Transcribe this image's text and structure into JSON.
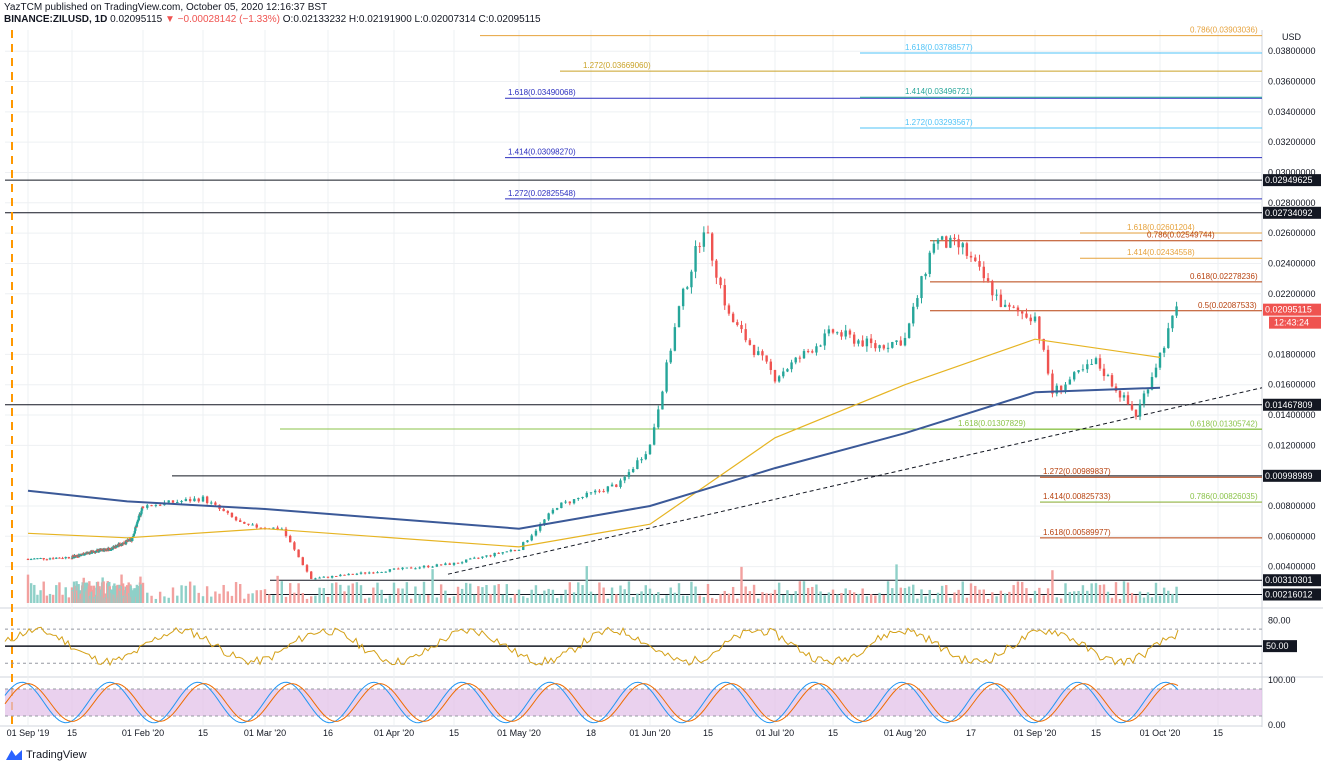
{
  "header": {
    "line1": "YazTCM published on TradingView.com, October 05, 2020 12:16:37 BST",
    "symbol": "BINANCE:ZILUSD, 1D",
    "last": "0.02095115",
    "change": "▼ −0.00028142 (−1.33%)",
    "ohlc": "O:0.02133232 H:0.02191900 L:0.02007314 C:0.02095115"
  },
  "brand": "TradingView",
  "currency": "USD",
  "colors": {
    "up": "#26a69a",
    "down": "#ef5350",
    "ma_fast": "#e6b422",
    "ma_slow": "#3b5998",
    "rsi": "#d4a017",
    "stoch_k": "#2196f3",
    "stoch_d": "#ef6c00",
    "stoch_band": "#e1bee7"
  },
  "chart_data": [
    {
      "type": "candlestick",
      "title": "BINANCE:ZILUSD, 1D",
      "ylim": [
        0.0016,
        0.0394
      ],
      "y_ticks": [
        "0.03800000",
        "0.03600000",
        "0.03400000",
        "0.03200000",
        "0.03000000",
        "0.02800000",
        "0.02600000",
        "0.02400000",
        "0.02200000",
        "0.01800000",
        "0.01600000",
        "0.01400000",
        "0.01200000",
        "0.00800000",
        "0.00600000",
        "0.00400000"
      ],
      "x_ticks": [
        "01 Sep '19",
        "15",
        "01 Feb '20",
        "15",
        "01 Mar '20",
        "16",
        "01 Apr '20",
        "15",
        "01 May '20",
        "18",
        "01 Jun '20",
        "15",
        "01 Jul '20",
        "15",
        "01 Aug '20",
        "17",
        "01 Sep '20",
        "15",
        "01 Oct '20",
        "15"
      ],
      "price_path": [
        [
          "2019-09-01",
          0.0045
        ],
        [
          "2019-10-15",
          0.0049
        ],
        [
          "2019-12-01",
          0.0052
        ],
        [
          "2020-01-10",
          0.0058
        ],
        [
          "2020-02-01",
          0.008
        ],
        [
          "2020-02-15",
          0.0085
        ],
        [
          "2020-02-25",
          0.0067
        ],
        [
          "2020-03-05",
          0.0065
        ],
        [
          "2020-03-12",
          0.0032
        ],
        [
          "2020-04-01",
          0.0038
        ],
        [
          "2020-04-15",
          0.0042
        ],
        [
          "2020-05-01",
          0.0052
        ],
        [
          "2020-05-10",
          0.008
        ],
        [
          "2020-05-25",
          0.0095
        ],
        [
          "2020-06-01",
          0.012
        ],
        [
          "2020-06-08",
          0.021
        ],
        [
          "2020-06-14",
          0.0265
        ],
        [
          "2020-06-20",
          0.0205
        ],
        [
          "2020-07-01",
          0.0165
        ],
        [
          "2020-07-15",
          0.0195
        ],
        [
          "2020-07-25",
          0.0185
        ],
        [
          "2020-08-01",
          0.019
        ],
        [
          "2020-08-08",
          0.0255
        ],
        [
          "2020-08-15",
          0.025
        ],
        [
          "2020-08-25",
          0.021
        ],
        [
          "2020-09-01",
          0.0205
        ],
        [
          "2020-09-05",
          0.0155
        ],
        [
          "2020-09-15",
          0.0175
        ],
        [
          "2020-09-25",
          0.014
        ],
        [
          "2020-10-01",
          0.018
        ],
        [
          "2020-10-05",
          0.02095
        ]
      ],
      "moving_average_fast": [
        [
          "2019-09-01",
          0.0062
        ],
        [
          "2020-01-01",
          0.0059
        ],
        [
          "2020-03-01",
          0.0065
        ],
        [
          "2020-05-01",
          0.0053
        ],
        [
          "2020-06-01",
          0.0068
        ],
        [
          "2020-07-01",
          0.0125
        ],
        [
          "2020-08-01",
          0.016
        ],
        [
          "2020-09-01",
          0.019
        ],
        [
          "2020-10-01",
          0.0178
        ]
      ],
      "moving_average_slow": [
        [
          "2019-09-01",
          0.009
        ],
        [
          "2020-01-01",
          0.0083
        ],
        [
          "2020-03-01",
          0.0078
        ],
        [
          "2020-05-01",
          0.0065
        ],
        [
          "2020-06-01",
          0.008
        ],
        [
          "2020-07-01",
          0.0105
        ],
        [
          "2020-08-01",
          0.0128
        ],
        [
          "2020-09-01",
          0.0155
        ],
        [
          "2020-10-01",
          0.0158
        ]
      ],
      "horizontal_levels": [
        {
          "value": 0.02949625,
          "label": "0.02949625"
        },
        {
          "value": 0.02734092,
          "label": "0.02734092"
        },
        {
          "value": 0.01467809,
          "label": "0.01467809"
        },
        {
          "value": 0.00998989,
          "label": "0.00998989"
        },
        {
          "value": 0.00310301,
          "label": "0.00310301"
        },
        {
          "value": 0.00216012,
          "label": "0.00216012"
        }
      ],
      "fib_levels": [
        {
          "label": "0.786(0.03903036)",
          "value": 0.03903036,
          "color": "#e6a23c"
        },
        {
          "label": "1.618(0.03788577)",
          "value": 0.03788577,
          "color": "#4fc3f7"
        },
        {
          "label": "1.272(0.03669060)",
          "value": 0.0366906,
          "color": "#c9a227"
        },
        {
          "label": "1.618(0.03490068)",
          "value": 0.03490068,
          "color": "#2b2fbf"
        },
        {
          "label": "1.414(0.03496721)",
          "value": 0.03496721,
          "color": "#26a69a"
        },
        {
          "label": "1.272(0.03293567)",
          "value": 0.03293567,
          "color": "#4fc3f7"
        },
        {
          "label": "1.414(0.03098270)",
          "value": 0.0309827,
          "color": "#2b2fbf"
        },
        {
          "label": "1.272(0.02825548)",
          "value": 0.02825548,
          "color": "#2b2fbf"
        },
        {
          "label": "1.618(0.02601204)",
          "value": 0.02601204,
          "color": "#e6a23c"
        },
        {
          "label": "0.786(0.02549744)",
          "value": 0.02549744,
          "color": "#b7410e"
        },
        {
          "label": "1.414(0.02434558)",
          "value": 0.02434558,
          "color": "#e6a23c"
        },
        {
          "label": "0.618(0.02278236)",
          "value": 0.02278236,
          "color": "#b7410e"
        },
        {
          "label": "0.5(0.02087533)",
          "value": 0.02087533,
          "color": "#b7410e"
        },
        {
          "label": "1.618(0.01307829)",
          "value": 0.01307829,
          "color": "#8bc34a"
        },
        {
          "label": "0.618(0.01305742)",
          "value": 0.01305742,
          "color": "#8bc34a"
        },
        {
          "label": "1.272(0.00989837)",
          "value": 0.00989837,
          "color": "#b7410e"
        },
        {
          "label": "1.414(0.00825733)",
          "value": 0.00825733,
          "color": "#b7410e"
        },
        {
          "label": "0.786(0.00826035)",
          "value": 0.00826035,
          "color": "#8bc34a"
        },
        {
          "label": "1.618(0.00589977)",
          "value": 0.00589977,
          "color": "#b7410e"
        }
      ],
      "last_price": {
        "value": 0.02095115,
        "label": "0.02095115",
        "countdown": "12:43:24"
      }
    },
    {
      "type": "line",
      "title": "RSI",
      "ylim": [
        15,
        90
      ],
      "y_ticks": [
        "80.00",
        "50.00"
      ],
      "reference_lines": [
        70,
        50,
        30
      ],
      "current": "50.00"
    },
    {
      "type": "line",
      "title": "Stochastic RSI",
      "ylim": [
        0,
        100
      ],
      "y_ticks": [
        "100.00",
        "0.00"
      ],
      "band": [
        20,
        80
      ]
    }
  ]
}
